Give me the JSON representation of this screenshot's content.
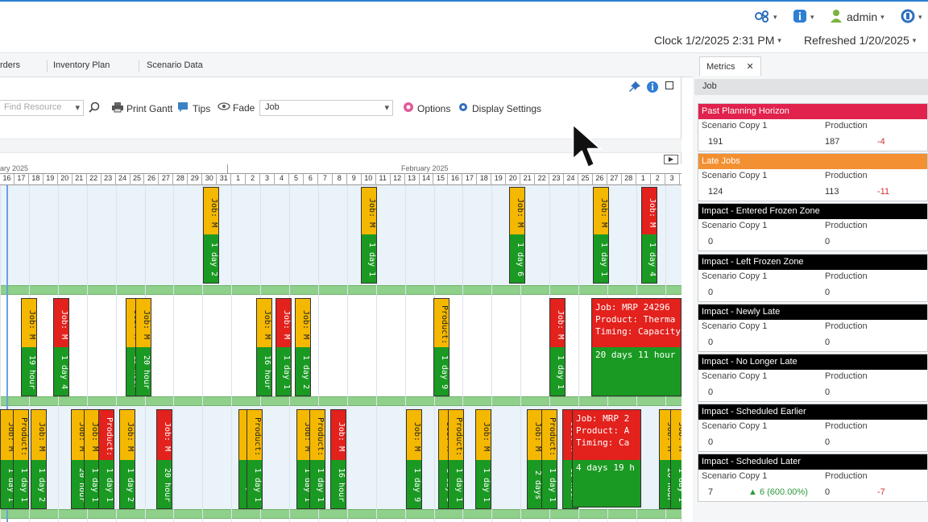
{
  "header": {
    "admin_label": "admin",
    "clock": "Clock 1/2/2025 2:31 PM",
    "refreshed": "Refreshed 1/20/2025"
  },
  "tabs": [
    "rders",
    "Inventory Plan",
    "Scenario Data"
  ],
  "toolbar": {
    "find_placeholder": "Find Resource",
    "print_gantt": "Print Gantt",
    "tips": "Tips",
    "fade": "Fade",
    "job_select": "Job",
    "options": "Options",
    "display_settings": "Display Settings"
  },
  "gantt": {
    "month_left": "ary 2025",
    "month_center": "February 2025",
    "days": [
      "16",
      "17",
      "18",
      "19",
      "20",
      "21",
      "22",
      "23",
      "24",
      "25",
      "26",
      "27",
      "28",
      "29",
      "30",
      "31",
      "1",
      "2",
      "3",
      "4",
      "5",
      "6",
      "7",
      "8",
      "9",
      "10",
      "11",
      "12",
      "13",
      "14",
      "15",
      "16",
      "17",
      "18",
      "19",
      "20",
      "21",
      "22",
      "23",
      "24",
      "25",
      "26",
      "27",
      "28",
      "1",
      "2",
      "3"
    ],
    "row1": [
      {
        "top": "Job: M",
        "bot": "1 day 2",
        "color": "#f5b800"
      },
      {
        "top": "Job: M",
        "bot": "1 day 1",
        "color": "#f5b800"
      },
      {
        "top": "Job: M",
        "bot": "1 day 6",
        "color": "#f5b800"
      },
      {
        "top": "Job: M",
        "bot": "1 day 1",
        "color": "#f5b800"
      },
      {
        "top": "Job: M",
        "bot": "1 day 4",
        "color": "#e3211d"
      }
    ],
    "row2": [
      {
        "top": "Job: M",
        "bot": "19 hour",
        "color": "#f5b800"
      },
      {
        "top": "Job: M",
        "bot": "1 day 4",
        "color": "#e3211d"
      },
      {
        "top": "Job: M",
        "bot": "15 hour",
        "color": "#f5b800"
      },
      {
        "top": "Job: M",
        "bot": "20 hour",
        "color": "#f5b800"
      },
      {
        "top": "Job: M",
        "bot": "16 hour",
        "color": "#f5b800"
      },
      {
        "top": "Job: M",
        "bot": "1 day 1",
        "color": "#e3211d"
      },
      {
        "top": "Job: M",
        "bot": "1 day 2",
        "color": "#f5b800"
      },
      {
        "top": "Product:",
        "bot": "1 day 9",
        "color": "#f5b800"
      },
      {
        "top": "Job: M",
        "bot": "1 day 1",
        "color": "#e3211d"
      }
    ],
    "row2_big": {
      "line1": "Job:  MRP 24296",
      "line2": "Product:  Therma",
      "line3": "Timing:  Capacity",
      "bot": "20 days 11 hour"
    },
    "row3": [
      {
        "top": "Job: M",
        "bot": "1 day 1",
        "color": "#f5b800"
      },
      {
        "top": "Product:",
        "bot": "1 day 1",
        "color": "#f5b800"
      },
      {
        "top": "Job: M",
        "bot": "1 day 2",
        "color": "#f5b800"
      },
      {
        "top": "Job: M",
        "bot": "20 hour",
        "color": "#f5b800"
      },
      {
        "top": "Job: M",
        "bot": "1 day 1",
        "color": "#f5b800"
      },
      {
        "top": "Product:",
        "bot": "1 day 1",
        "color": "#e3211d"
      },
      {
        "top": "Job: M",
        "bot": "1 day 2",
        "color": "#f5b800"
      },
      {
        "top": "Job: M",
        "bot": "20 hour",
        "color": "#e3211d"
      },
      {
        "top": "Job: M",
        "bot": "1 day 1",
        "color": "#f5b800"
      },
      {
        "top": "Product:",
        "bot": "1 day 1",
        "color": "#f5b800"
      },
      {
        "top": "Job: M",
        "bot": "1 day 1",
        "color": "#f5b800"
      },
      {
        "top": "Product:",
        "bot": "1 day 1",
        "color": "#f5b800"
      },
      {
        "top": "Job: M",
        "bot": "16 hour",
        "color": "#e3211d"
      },
      {
        "top": "Job: M",
        "bot": "1 day 9",
        "color": "#f5b800"
      },
      {
        "top": "Job: M",
        "bot": "1 day 1",
        "color": "#f5b800"
      },
      {
        "top": "Product:",
        "bot": "1 day 1",
        "color": "#f5b800"
      },
      {
        "top": "Job: M",
        "bot": "1 day 1",
        "color": "#f5b800"
      },
      {
        "top": "Job: M",
        "bot": "2 days",
        "color": "#f5b800"
      },
      {
        "top": "Product:",
        "bot": "1 day 1",
        "color": "#f5b800"
      },
      {
        "top": "Job: M",
        "bot": "16 hour",
        "color": "#e3211d"
      },
      {
        "top": "Job: M",
        "bot": "20 hour",
        "color": "#f5b800"
      },
      {
        "top": "Job: M",
        "bot": "1 day 1",
        "color": "#f5b800"
      }
    ],
    "row3_big": {
      "line1": "Job:  MRP 2",
      "line2": "Product:  A",
      "line3": "Timing:  Ca",
      "bot": "4 days 19 h"
    }
  },
  "metrics": {
    "tab_label": "Metrics",
    "close": "✕",
    "header": "Job",
    "cards": [
      {
        "title": "Past Planning Horizon",
        "color": "#e0224c",
        "l1": "Scenario Copy 1",
        "l2": "Production",
        "v1": "191",
        "v2": "187",
        "delta": "-4",
        "extra": ""
      },
      {
        "title": "Late Jobs",
        "color": "#f39031",
        "l1": "Scenario Copy 1",
        "l2": "Production",
        "v1": "124",
        "v2": "113",
        "delta": "-11",
        "extra": ""
      },
      {
        "title": "Impact - Entered Frozen Zone",
        "color": "#000000",
        "l1": "Scenario Copy 1",
        "l2": "Production",
        "v1": "0",
        "v2": "0",
        "delta": "",
        "extra": ""
      },
      {
        "title": "Impact - Left Frozen Zone",
        "color": "#000000",
        "l1": "Scenario Copy 1",
        "l2": "Production",
        "v1": "0",
        "v2": "0",
        "delta": "",
        "extra": ""
      },
      {
        "title": "Impact - Newly Late",
        "color": "#000000",
        "l1": "Scenario Copy 1",
        "l2": "Production",
        "v1": "0",
        "v2": "0",
        "delta": "",
        "extra": ""
      },
      {
        "title": "Impact - No Longer Late",
        "color": "#000000",
        "l1": "Scenario Copy 1",
        "l2": "Production",
        "v1": "0",
        "v2": "0",
        "delta": "",
        "extra": ""
      },
      {
        "title": "Impact - Scheduled Earlier",
        "color": "#000000",
        "l1": "Scenario Copy 1",
        "l2": "Production",
        "v1": "0",
        "v2": "0",
        "delta": "",
        "extra": ""
      },
      {
        "title": "Impact - Scheduled Later",
        "color": "#000000",
        "l1": "Scenario Copy 1",
        "l2": "Production",
        "v1": "7",
        "v2": "0",
        "delta": "-7",
        "extra": "▲ 6 (600.00%)"
      }
    ]
  },
  "colors": {
    "accent": "#2f7fd4",
    "green": "#1a9a22",
    "red": "#e3211d",
    "yellow": "#f5b800"
  }
}
